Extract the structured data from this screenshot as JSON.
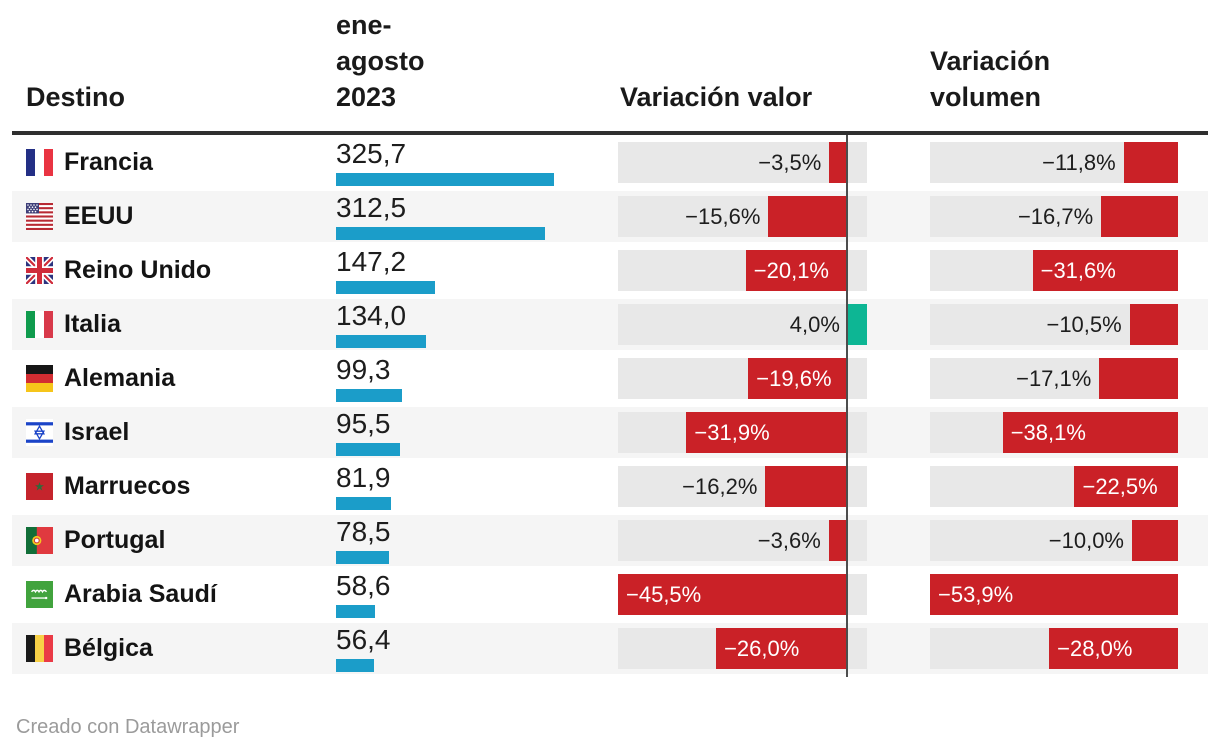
{
  "header": {
    "col_destino": "Destino",
    "col_value": "ene-agosto 2023",
    "col_var_valor": "Variación valor",
    "col_var_volumen": "Variación volumen"
  },
  "footer": {
    "credit": "Creado con Datawrapper"
  },
  "colors": {
    "bar_blue": "#1b9dc9",
    "bar_red": "#ca2127",
    "bar_green": "#0db694",
    "track": "#e8e8e8",
    "row_alt": "#f5f5f5",
    "zero_line": "#4d4d4d",
    "rule": "#2f2f2f"
  },
  "chart_data": {
    "type": "table",
    "columns": [
      "Destino",
      "ene-agosto 2023",
      "Variación valor",
      "Variación volumen"
    ],
    "value_axis": {
      "min": 0,
      "max": 325.7
    },
    "valor_axis": {
      "min": -45.5,
      "max": 4.0
    },
    "volumen_axis": {
      "min": -53.9,
      "max": 0
    },
    "rows": [
      {
        "country": "Francia",
        "flag": "france-flag",
        "value": "325,7",
        "value_num": 325.7,
        "var_valor": -3.5,
        "var_valor_label": "−3,5%",
        "var_volumen": -11.8,
        "var_volumen_label": "−11,8%"
      },
      {
        "country": "EEUU",
        "flag": "usa-flag",
        "value": "312,5",
        "value_num": 312.5,
        "var_valor": -15.6,
        "var_valor_label": "−15,6%",
        "var_volumen": -16.7,
        "var_volumen_label": "−16,7%"
      },
      {
        "country": "Reino Unido",
        "flag": "uk-flag",
        "value": "147,2",
        "value_num": 147.2,
        "var_valor": -20.1,
        "var_valor_label": "−20,1%",
        "var_volumen": -31.6,
        "var_volumen_label": "−31,6%"
      },
      {
        "country": "Italia",
        "flag": "italy-flag",
        "value": "134,0",
        "value_num": 134.0,
        "var_valor": 4.0,
        "var_valor_label": "4,0%",
        "var_volumen": -10.5,
        "var_volumen_label": "−10,5%"
      },
      {
        "country": "Alemania",
        "flag": "germany-flag",
        "value": "99,3",
        "value_num": 99.3,
        "var_valor": -19.6,
        "var_valor_label": "−19,6%",
        "var_volumen": -17.1,
        "var_volumen_label": "−17,1%"
      },
      {
        "country": "Israel",
        "flag": "israel-flag",
        "value": "95,5",
        "value_num": 95.5,
        "var_valor": -31.9,
        "var_valor_label": "−31,9%",
        "var_volumen": -38.1,
        "var_volumen_label": "−38,1%"
      },
      {
        "country": "Marruecos",
        "flag": "morocco-flag",
        "value": "81,9",
        "value_num": 81.9,
        "var_valor": -16.2,
        "var_valor_label": "−16,2%",
        "var_volumen": -22.5,
        "var_volumen_label": "−22,5%"
      },
      {
        "country": "Portugal",
        "flag": "portugal-flag",
        "value": "78,5",
        "value_num": 78.5,
        "var_valor": -3.6,
        "var_valor_label": "−3,6%",
        "var_volumen": -10.0,
        "var_volumen_label": "−10,0%"
      },
      {
        "country": "Arabia Saudí",
        "flag": "saudi-arabia-flag",
        "value": "58,6",
        "value_num": 58.6,
        "var_valor": -45.5,
        "var_valor_label": "−45,5%",
        "var_volumen": -53.9,
        "var_volumen_label": "−53,9%"
      },
      {
        "country": "Bélgica",
        "flag": "belgium-flag",
        "value": "56,4",
        "value_num": 56.4,
        "var_valor": -26.0,
        "var_valor_label": "−26,0%",
        "var_volumen": -28.0,
        "var_volumen_label": "−28,0%"
      }
    ]
  }
}
